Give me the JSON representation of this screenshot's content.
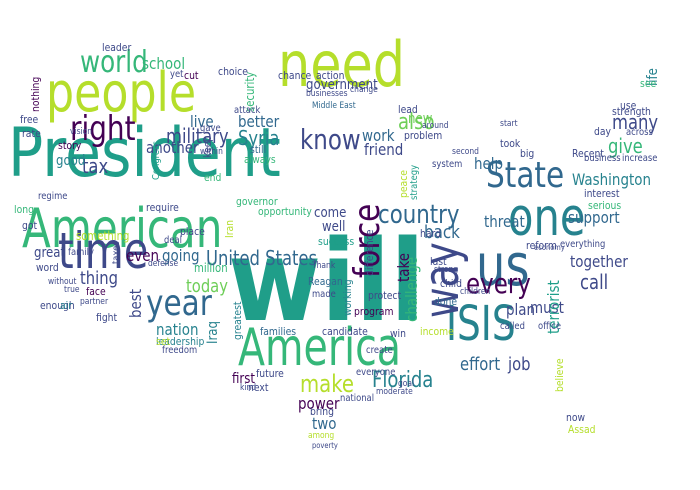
{
  "palette": {
    "teal": "#1f9e89",
    "lime": "#b5de2b",
    "indigo": "#3e4989",
    "blue_teal": "#26828e",
    "green": "#35b779",
    "purple": "#440154",
    "light_green": "#6ece58",
    "steel": "#31688e",
    "yellow": "#fde725"
  },
  "words": {
    "will": "will",
    "president": "President",
    "people": "people",
    "need": "need",
    "american": "American",
    "america": "America",
    "time": "time",
    "one": "one",
    "us": "us",
    "way": "way",
    "isis": "ISIS",
    "force": "force",
    "state": "State",
    "right": "right",
    "year": "year",
    "world": "world",
    "know": "know",
    "country": "country",
    "every": "every",
    "make": "make",
    "united_states": "United States",
    "florida": "Florida",
    "washington": "Washington",
    "also": "also",
    "military": "military",
    "tax": "tax",
    "school": "school",
    "government": "government",
    "syria": "Syria",
    "work": "work",
    "friend": "friend",
    "give": "give",
    "many": "many",
    "support": "support",
    "call": "call",
    "together": "together",
    "back": "back",
    "help": "help",
    "threat": "threat",
    "terrorist": "terrorist",
    "challenge": "challenge",
    "take": "take",
    "plan": "plan",
    "must": "must",
    "effort": "effort",
    "job": "job",
    "nation": "nation",
    "best": "best",
    "today": "today",
    "even": "even",
    "going": "going",
    "thing": "thing",
    "great": "great",
    "first": "first",
    "power": "power",
    "two": "two",
    "iraq": "Iraq",
    "better": "better",
    "live": "live",
    "another": "another",
    "good": "good",
    "something": "something",
    "come": "come",
    "well": "well",
    "new": "new",
    "story": "story",
    "free": "free",
    "rate": "rate",
    "leader": "leader",
    "choice": "choice",
    "chance": "chance",
    "action": "action",
    "cut": "cut",
    "still": "still",
    "attack": "attack",
    "security": "security",
    "always": "always",
    "problem": "problem",
    "lead": "lead",
    "middle_east": "Middle East",
    "reagan": "Reagan",
    "program": "program",
    "protect": "protect",
    "win": "win",
    "candidate": "candidate",
    "income": "income",
    "families": "families",
    "greatest": "greatest",
    "leadership": "leadership",
    "face": "face",
    "word": "word",
    "enough": "enough",
    "air": "air",
    "fight": "fight",
    "got": "got",
    "long": "long",
    "regime": "regime",
    "require": "require",
    "place": "place",
    "deal": "deal",
    "million": "million",
    "governor": "governor",
    "opportunity": "opportunity",
    "success": "success",
    "peace": "peace",
    "strategy": "strategy",
    "difference": "difference",
    "working": "working",
    "child": "child",
    "last": "last",
    "done": "done",
    "hard": "hard",
    "took": "took",
    "big": "big",
    "recent": "Recent",
    "business": "business",
    "interest": "interest",
    "serious": "serious",
    "reform": "reform",
    "everything": "everything",
    "day": "day",
    "use": "use",
    "see": "see",
    "life": "life",
    "strength": "strength",
    "across": "across",
    "increase": "increase",
    "assad": "Assad",
    "believe": "believe",
    "now": "now",
    "start": "start",
    "system": "system",
    "family": "family",
    "congress": "Congress",
    "taxes": "taxes",
    "set": "set",
    "future": "future",
    "next": "next",
    "bring": "bring",
    "national": "national",
    "create": "create",
    "everyone": "everyone",
    "made": "made",
    "called": "called",
    "office": "office",
    "within": "within",
    "keep": "keep",
    "iran": "Iran",
    "gave": "gave",
    "end": "end",
    "freedom": "freedom",
    "kind": "kind",
    "among": "among",
    "poverty": "poverty",
    "moderate": "moderate",
    "goal": "goal",
    "strong": "strong",
    "children": "children",
    "thank": "Thank",
    "yet": "yet",
    "nothing": "nothing",
    "businesses": "businesses",
    "change": "change",
    "around": "around",
    "vision": "vision",
    "without": "without",
    "defense": "defense",
    "true": "true",
    "partner": "partner",
    "economy": "economy",
    "second": "second"
  }
}
